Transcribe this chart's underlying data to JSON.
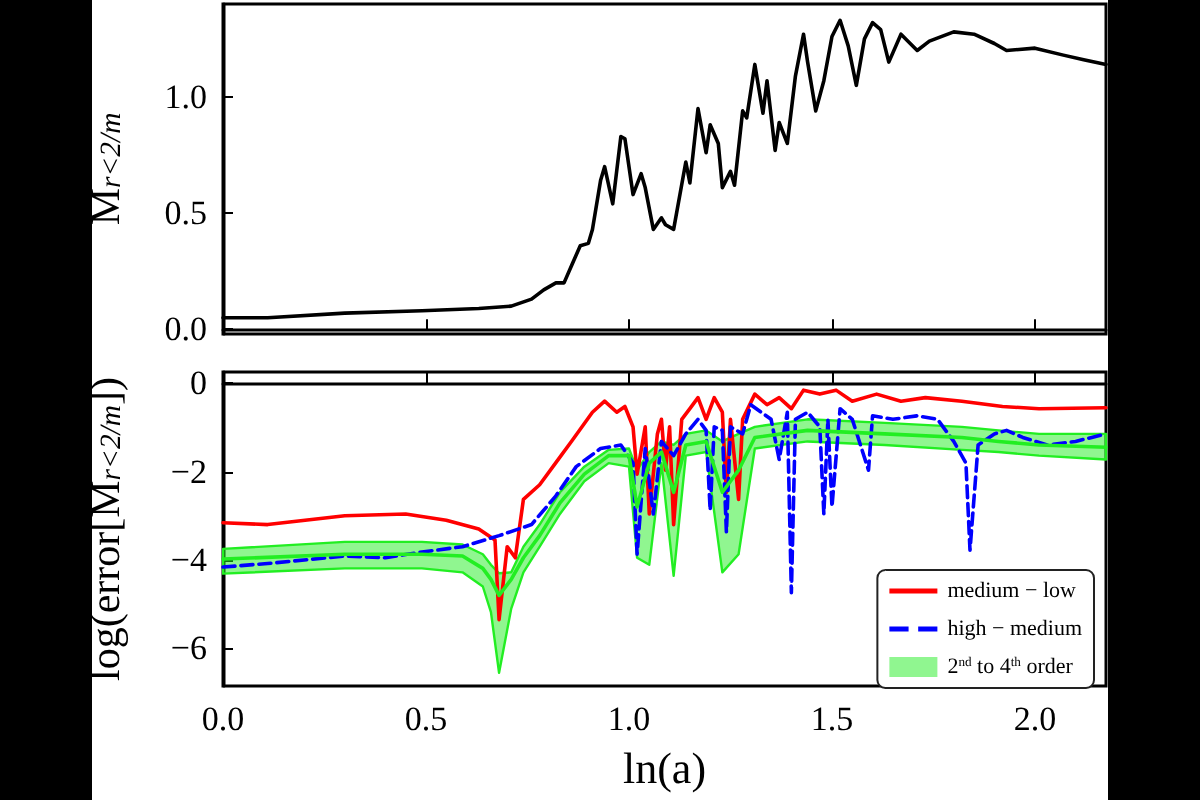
{
  "chart_data": [
    {
      "type": "line",
      "ylabel": "M$_{r<2/m}$",
      "xlim": [
        0,
        2.175
      ],
      "xticks": [
        {
          "value": 0,
          "label": null
        },
        {
          "value": 0.5,
          "label": null
        },
        {
          "value": 1,
          "label": null
        },
        {
          "value": 1.5,
          "label": null
        },
        {
          "value": 2,
          "label": null
        }
      ],
      "ylim": [
        -0.02,
        1.4
      ],
      "yticks": [
        {
          "value": 0,
          "label": "0.0"
        },
        0.5,
        {
          "value": 1,
          "label": "1.0"
        }
      ],
      "tick_labels": "y",
      "marker": "none",
      "line_style": "solid",
      "series": [
        {
          "color": "#000000",
          "x": [
            0,
            0.11,
            0.3,
            0.49,
            0.63,
            0.71,
            0.76,
            0.79,
            0.82,
            0.84,
            0.86,
            0.88,
            0.9,
            0.91,
            0.93,
            0.94,
            0.96,
            0.98,
            0.99,
            1.01,
            1.03,
            1.04,
            1.06,
            1.08,
            1.09,
            1.11,
            1.14,
            1.15,
            1.17,
            1.19,
            1.2,
            1.22,
            1.23,
            1.25,
            1.26,
            1.28,
            1.29,
            1.31,
            1.33,
            1.34,
            1.36,
            1.37,
            1.39,
            1.41,
            1.43,
            1.44,
            1.46,
            1.48,
            1.5,
            1.52,
            1.54,
            1.56,
            1.58,
            1.6,
            1.62,
            1.64,
            1.67,
            1.71,
            1.74,
            1.8,
            1.85,
            1.9,
            1.93,
            2.0,
            2.07,
            2.12,
            2.175
          ],
          "values": [
            0.05,
            0.05,
            0.07,
            0.08,
            0.09,
            0.1,
            0.13,
            0.17,
            0.2,
            0.2,
            0.28,
            0.36,
            0.37,
            0.43,
            0.64,
            0.7,
            0.54,
            0.83,
            0.82,
            0.58,
            0.67,
            0.61,
            0.43,
            0.48,
            0.45,
            0.43,
            0.72,
            0.63,
            0.95,
            0.76,
            0.88,
            0.8,
            0.61,
            0.68,
            0.62,
            0.94,
            0.91,
            1.14,
            0.93,
            1.07,
            0.77,
            0.89,
            0.8,
            1.09,
            1.27,
            1.15,
            0.94,
            1.07,
            1.26,
            1.33,
            1.22,
            1.05,
            1.25,
            1.32,
            1.29,
            1.15,
            1.27,
            1.2,
            1.24,
            1.28,
            1.27,
            1.23,
            1.2,
            1.21,
            1.18,
            1.16,
            1.14
          ]
        }
      ]
    },
    {
      "type": "line",
      "xlabel": "ln(a)",
      "ylabel": "log(error[M$_{r<2/m}$])",
      "xlim": [
        0,
        2.175
      ],
      "xticks": [
        {
          "value": 0,
          "label": "0.0"
        },
        0.5,
        {
          "value": 1,
          "label": "1.0"
        },
        1.5,
        {
          "value": 2,
          "label": "2.0"
        }
      ],
      "ylim": [
        -6.85,
        0.25
      ],
      "yticks": [
        {
          "value": -6,
          "label": "−6"
        },
        {
          "value": -4,
          "label": "−4"
        },
        {
          "value": -2,
          "label": "−2"
        },
        0
      ],
      "legend": "bottom right",
      "marker": "none",
      "series": [
        {
          "name": "medium − low",
          "color": "#ff0000",
          "line_style": "solid",
          "x": [
            0,
            0.11,
            0.3,
            0.45,
            0.55,
            0.63,
            0.67,
            0.68,
            0.7,
            0.72,
            0.74,
            0.78,
            0.82,
            0.86,
            0.91,
            0.94,
            0.97,
            0.99,
            1.01,
            1.02,
            1.04,
            1.05,
            1.07,
            1.08,
            1.09,
            1.1,
            1.11,
            1.13,
            1.15,
            1.17,
            1.19,
            1.21,
            1.23,
            1.24,
            1.25,
            1.27,
            1.28,
            1.31,
            1.34,
            1.37,
            1.4,
            1.43,
            1.47,
            1.51,
            1.55,
            1.61,
            1.67,
            1.73,
            1.82,
            1.92,
            2.01,
            2.175
          ],
          "values": [
            -3.16,
            -3.2,
            -3.0,
            -2.96,
            -3.1,
            -3.3,
            -3.55,
            -5.35,
            -3.7,
            -3.95,
            -2.63,
            -2.3,
            -1.8,
            -1.3,
            -0.66,
            -0.41,
            -0.66,
            -0.53,
            -0.99,
            -2.06,
            -0.99,
            -2.96,
            -1.15,
            -0.82,
            -1.97,
            -0.99,
            -3.2,
            -0.82,
            -0.58,
            -0.33,
            -0.82,
            -0.33,
            -0.66,
            -2.47,
            -0.82,
            -2.63,
            -0.82,
            -0.25,
            -0.49,
            -0.33,
            -0.58,
            -0.16,
            -0.25,
            -0.16,
            -0.41,
            -0.25,
            -0.41,
            -0.33,
            -0.41,
            -0.53,
            -0.58,
            -0.56
          ]
        },
        {
          "name": "high − medium",
          "color": "#0000ff",
          "line_style": "dashed",
          "x": [
            0,
            0.11,
            0.3,
            0.4,
            0.49,
            0.59,
            0.68,
            0.76,
            0.82,
            0.87,
            0.93,
            0.98,
            1.01,
            1.02,
            1.04,
            1.06,
            1.08,
            1.11,
            1.14,
            1.17,
            1.19,
            1.2,
            1.21,
            1.23,
            1.24,
            1.25,
            1.28,
            1.3,
            1.35,
            1.37,
            1.39,
            1.4,
            1.41,
            1.44,
            1.47,
            1.48,
            1.49,
            1.5,
            1.52,
            1.55,
            1.59,
            1.6,
            1.65,
            1.71,
            1.76,
            1.8,
            1.83,
            1.84,
            1.86,
            1.9,
            1.93,
            1.97,
            2.03,
            2.1,
            2.175
          ],
          "values": [
            -4.16,
            -4.08,
            -3.91,
            -3.95,
            -3.82,
            -3.7,
            -3.45,
            -3.2,
            -2.55,
            -1.89,
            -1.48,
            -1.4,
            -1.81,
            -3.87,
            -1.48,
            -2.96,
            -1.32,
            -1.64,
            -1.15,
            -0.82,
            -1.07,
            -2.88,
            -0.99,
            -1.07,
            -3.37,
            -0.99,
            -1.15,
            -0.49,
            -0.82,
            -1.73,
            -0.66,
            -4.74,
            -0.82,
            -0.66,
            -0.99,
            -2.96,
            -0.82,
            -2.8,
            -0.58,
            -0.82,
            -1.97,
            -0.74,
            -0.82,
            -0.74,
            -0.82,
            -1.32,
            -1.81,
            -3.78,
            -1.4,
            -1.15,
            -1.07,
            -1.23,
            -1.4,
            -1.32,
            -1.15
          ]
        },
        {
          "name": "2$^{nd}$ to 4$^{th}$ order",
          "color": "#22ee22",
          "line_style": "solid",
          "x": [
            0,
            0.3,
            0.49,
            0.59,
            0.64,
            0.66,
            0.68,
            0.71,
            0.74,
            0.78,
            0.83,
            0.89,
            0.95,
            1.0,
            1.02,
            1.05,
            1.08,
            1.11,
            1.14,
            1.19,
            1.23,
            1.27,
            1.31,
            1.44,
            1.63,
            1.82,
            1.91,
            2.01,
            2.175
          ],
          "values": [
            -3.98,
            -3.87,
            -3.87,
            -3.91,
            -4.19,
            -4.44,
            -4.8,
            -4.44,
            -3.95,
            -3.45,
            -2.71,
            -2.06,
            -1.64,
            -1.64,
            -2.8,
            -1.81,
            -1.56,
            -2.47,
            -1.4,
            -1.32,
            -2.47,
            -1.97,
            -1.23,
            -1.07,
            -1.15,
            -1.23,
            -1.32,
            -1.4,
            -1.45
          ],
          "upper": [
            -3.75,
            -3.59,
            -3.59,
            -3.65,
            -3.87,
            -4.11,
            -4.3,
            -4.28,
            -3.7,
            -3.2,
            -2.47,
            -1.89,
            -1.51,
            -1.48,
            -1.97,
            -1.56,
            -1.32,
            -1.4,
            -1.15,
            -1.07,
            -1.32,
            -1.15,
            -0.99,
            -0.82,
            -0.9,
            -0.99,
            -1.07,
            -1.15,
            -1.15
          ],
          "lower": [
            -4.31,
            -4.19,
            -4.19,
            -4.28,
            -4.6,
            -5.18,
            -6.55,
            -5.1,
            -4.28,
            -3.7,
            -2.96,
            -2.22,
            -1.81,
            -1.89,
            -3.95,
            -4.11,
            -1.81,
            -4.36,
            -1.64,
            -1.56,
            -4.28,
            -3.87,
            -1.48,
            -1.32,
            -1.4,
            -1.51,
            -1.56,
            -1.64,
            -1.73
          ]
        }
      ]
    }
  ]
}
